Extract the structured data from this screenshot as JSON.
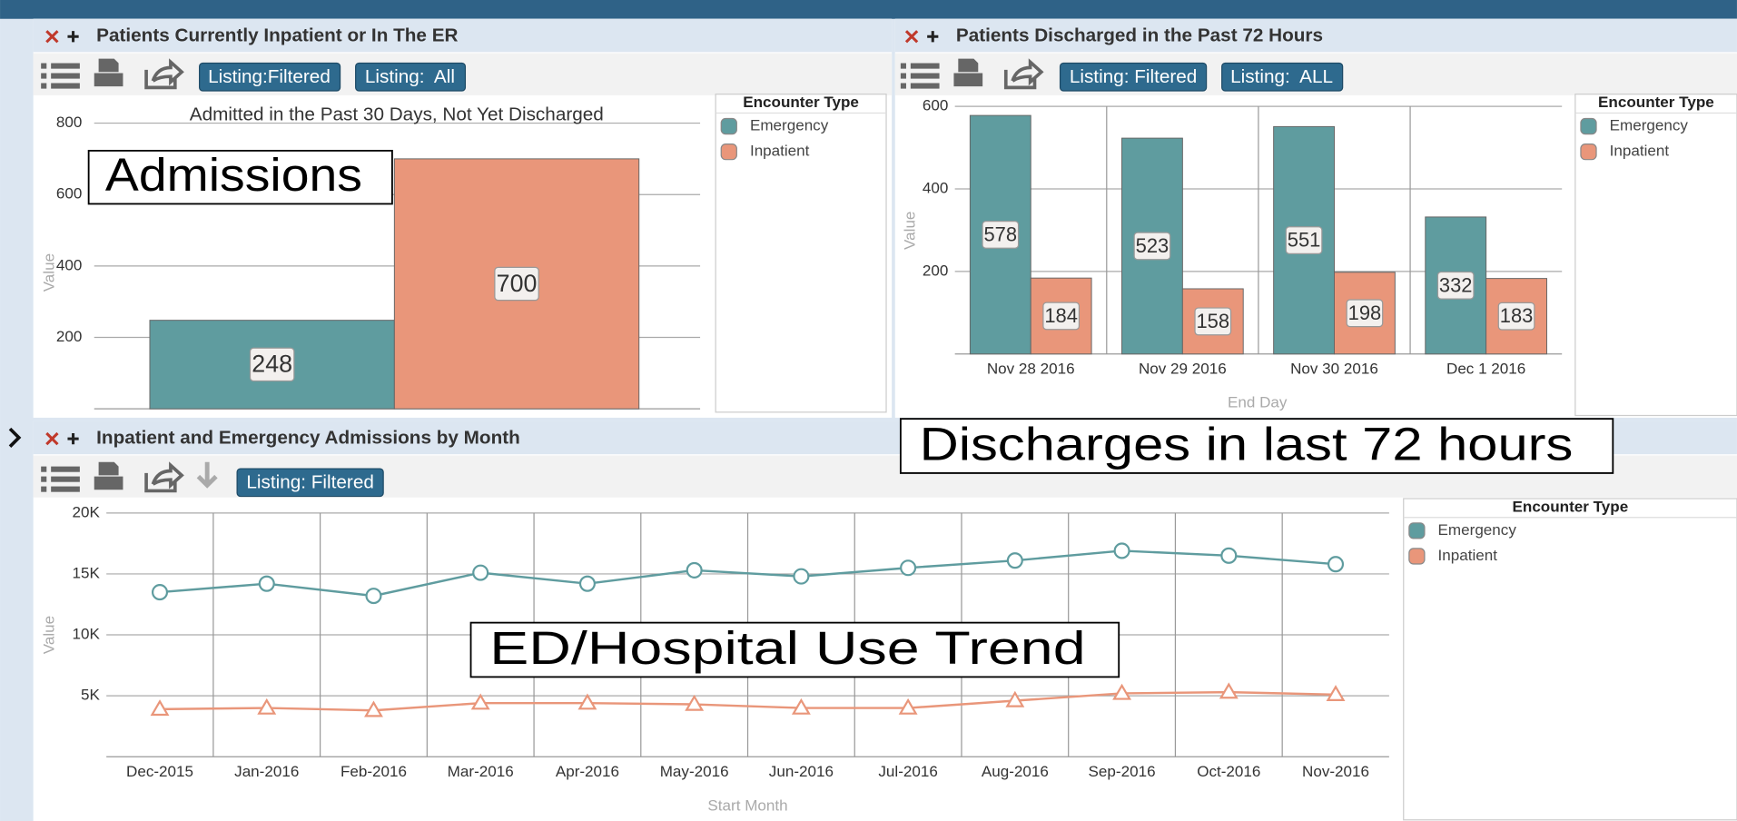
{
  "panels": [
    {
      "title": "Patients Currently Inpatient or In The ER",
      "buttons": [
        "Listing:Filtered",
        "Listing:  All"
      ]
    },
    {
      "title": "Patients Discharged in the Past 72 Hours",
      "buttons": [
        "Listing: Filtered",
        "Listing:  ALL"
      ]
    },
    {
      "title": "Inpatient and Emergency Admissions by Month",
      "buttons": [
        "Listing: Filtered"
      ]
    }
  ],
  "overlays": [
    "Admissions",
    "Discharges in last 72 hours",
    "ED/Hospital Use Trend"
  ],
  "chart_data": [
    {
      "type": "bar",
      "title": "Admitted in the Past 30 Days, Not Yet Discharged",
      "y_label": "Value",
      "categories": [
        null
      ],
      "legend_title": "Encounter Type",
      "grid": true,
      "ylim": [
        0,
        850
      ],
      "yticks": [
        200,
        400,
        600,
        800
      ],
      "series": [
        {
          "name": "Emergency",
          "color": "#5f9c9f",
          "values": [
            248
          ]
        },
        {
          "name": "Inpatient",
          "color": "#e9967a",
          "values": [
            700
          ]
        }
      ]
    },
    {
      "type": "bar",
      "x_label": "End Day",
      "y_label": "Value",
      "categories": [
        "Nov 28 2016",
        "Nov 29 2016",
        "Nov 30 2016",
        "Dec 1 2016"
      ],
      "legend_title": "Encounter Type",
      "grid": true,
      "ylim": [
        0,
        600
      ],
      "yticks": [
        200,
        400,
        600
      ],
      "series": [
        {
          "name": "Emergency",
          "color": "#5f9c9f",
          "values": [
            578,
            523,
            551,
            332
          ]
        },
        {
          "name": "Inpatient",
          "color": "#e9967a",
          "values": [
            184,
            158,
            198,
            183
          ]
        }
      ]
    },
    {
      "type": "line",
      "x_label": "Start Month",
      "y_label": "Value",
      "categories": [
        "Dec-2015",
        "Jan-2016",
        "Feb-2016",
        "Mar-2016",
        "Apr-2016",
        "May-2016",
        "Jun-2016",
        "Jul-2016",
        "Aug-2016",
        "Sep-2016",
        "Oct-2016",
        "Nov-2016"
      ],
      "legend_title": "Encounter Type",
      "grid": true,
      "ylim": [
        0,
        20000
      ],
      "yticks": [
        {
          "value": 5000,
          "label": "5K"
        },
        {
          "value": 10000,
          "label": "10K"
        },
        {
          "value": 15000,
          "label": "15K"
        },
        {
          "value": 20000,
          "label": "20K"
        }
      ],
      "series": [
        {
          "name": "Emergency",
          "color": "#5f9c9f",
          "marker": "circle",
          "values": [
            13500,
            14200,
            13200,
            15100,
            14200,
            15300,
            14800,
            15500,
            16100,
            16900,
            16500,
            15800
          ]
        },
        {
          "name": "Inpatient",
          "color": "#e9967a",
          "marker": "triangle",
          "values": [
            3900,
            4000,
            3800,
            4400,
            4400,
            4300,
            4000,
            4000,
            4600,
            5200,
            5300,
            5100
          ]
        }
      ]
    }
  ]
}
